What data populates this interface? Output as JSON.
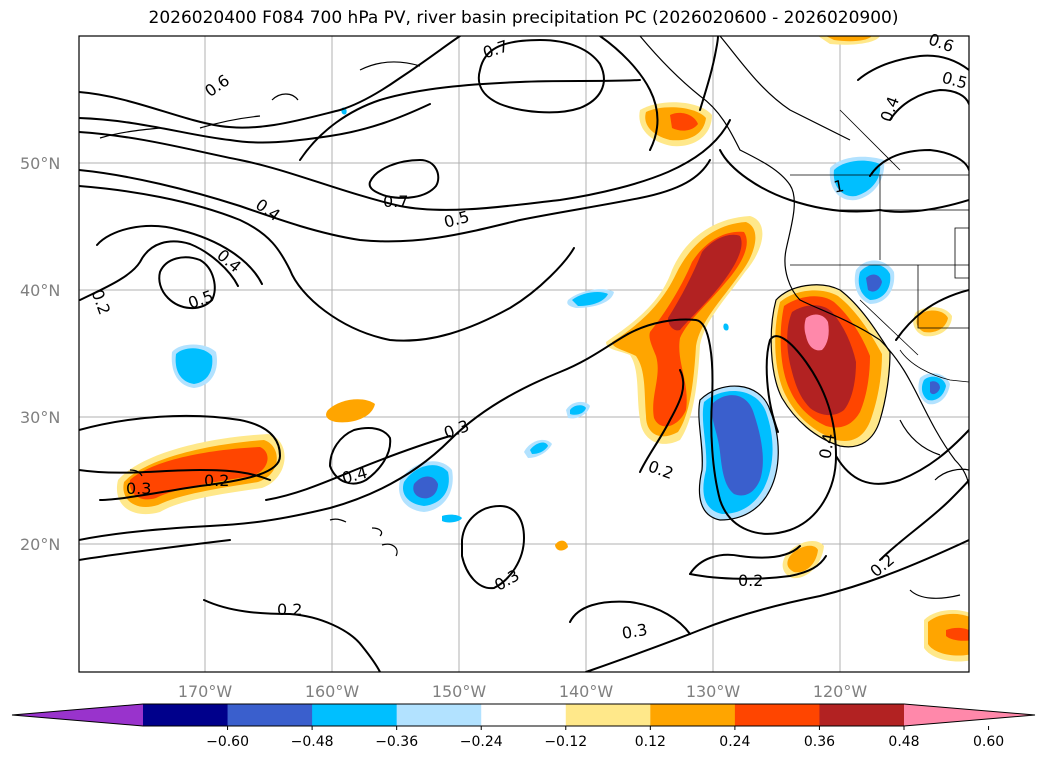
{
  "title": "2026020400 F084 700 hPa PV, river basin precipitation PC (2026020600 - 2026020900)",
  "lat_labels": [
    "50°N",
    "40°N",
    "30°N",
    "20°N"
  ],
  "lon_labels": [
    "170°W",
    "160°W",
    "150°W",
    "140°W",
    "130°W",
    "120°W"
  ],
  "contour_labels": [
    "0.7",
    "0.6",
    "0.6",
    "0.5",
    "0.4",
    "0.7",
    "0.5",
    "0.4",
    "0.4",
    "0.5",
    "0.2",
    "0.3",
    "0.4",
    "0.3",
    "0.2",
    "0.2",
    "0.4",
    "0.3",
    "0.2",
    "0.3",
    "0.2",
    "0.2",
    "1"
  ],
  "colorbar": {
    "ticks": [
      "−0.60",
      "−0.48",
      "−0.36",
      "−0.24",
      "−0.12",
      "0.12",
      "0.24",
      "0.36",
      "0.48",
      "0.60"
    ],
    "colors": [
      "#9933cc",
      "#00008b",
      "#3a5fcd",
      "#00bfff",
      "#b2e2ff",
      "#ffffff",
      "#ffe88a",
      "#ffa500",
      "#ff4500",
      "#b22222",
      "#ff88aa"
    ]
  },
  "colors": {
    "grid": "#b0b0b0",
    "axis_text": "#808080"
  }
}
